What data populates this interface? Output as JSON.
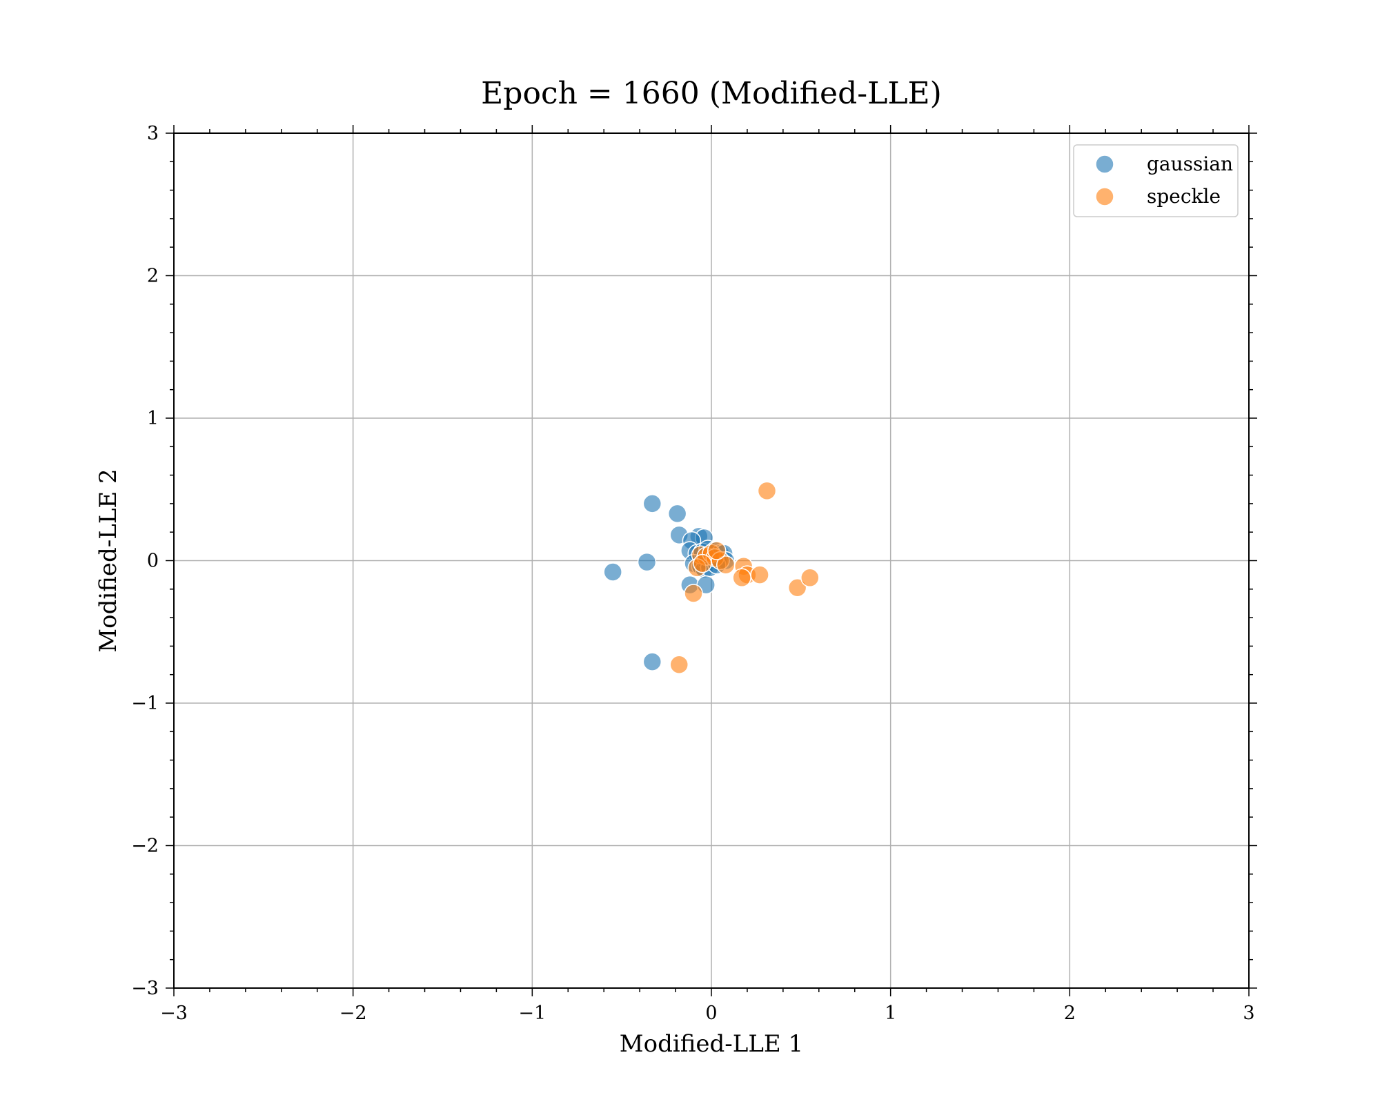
{
  "chart_data": {
    "type": "scatter",
    "title": "Epoch = 1660 (Modified-LLE)",
    "xlabel": "Modified-LLE 1",
    "ylabel": "Modified-LLE 2",
    "xlim": [
      -3,
      3
    ],
    "ylim": [
      -3,
      3
    ],
    "xticks": [
      -3,
      -2,
      -1,
      0,
      1,
      2,
      3
    ],
    "yticks": [
      -3,
      -2,
      -1,
      0,
      1,
      2,
      3
    ],
    "xtick_labels": [
      "−3",
      "−2",
      "−1",
      "0",
      "1",
      "2",
      "3"
    ],
    "ytick_labels": [
      "−3",
      "−2",
      "−1",
      "0",
      "1",
      "2",
      "3"
    ],
    "grid": true,
    "legend_position": "top-right",
    "series": [
      {
        "name": "gaussian",
        "color": "#1f77b4",
        "points": [
          [
            -0.33,
            0.4
          ],
          [
            -0.19,
            0.33
          ],
          [
            -0.18,
            0.18
          ],
          [
            -0.07,
            0.17
          ],
          [
            -0.04,
            0.16
          ],
          [
            -0.11,
            0.14
          ],
          [
            -0.55,
            -0.08
          ],
          [
            -0.36,
            -0.01
          ],
          [
            -0.12,
            0.07
          ],
          [
            -0.08,
            0.05
          ],
          [
            -0.05,
            0.06
          ],
          [
            -0.02,
            0.08
          ],
          [
            0.02,
            0.07
          ],
          [
            0.05,
            0.05
          ],
          [
            0.07,
            0.05
          ],
          [
            -0.1,
            -0.02
          ],
          [
            -0.06,
            -0.04
          ],
          [
            -0.03,
            0.0
          ],
          [
            0.01,
            0.02
          ],
          [
            0.04,
            -0.01
          ],
          [
            0.08,
            0.0
          ],
          [
            -0.04,
            -0.06
          ],
          [
            -0.01,
            -0.05
          ],
          [
            0.03,
            -0.03
          ],
          [
            -0.12,
            -0.17
          ],
          [
            -0.03,
            -0.17
          ],
          [
            -0.33,
            -0.71
          ]
        ]
      },
      {
        "name": "speckle",
        "color": "#ff7f0e",
        "points": [
          [
            0.31,
            0.49
          ],
          [
            -0.06,
            0.04
          ],
          [
            -0.03,
            0.03
          ],
          [
            0.0,
            0.05
          ],
          [
            0.02,
            0.02
          ],
          [
            0.05,
            0.0
          ],
          [
            0.08,
            -0.03
          ],
          [
            -0.08,
            -0.05
          ],
          [
            -0.05,
            -0.02
          ],
          [
            0.03,
            0.07
          ],
          [
            0.18,
            -0.04
          ],
          [
            0.2,
            -0.1
          ],
          [
            0.17,
            -0.12
          ],
          [
            0.27,
            -0.1
          ],
          [
            0.48,
            -0.19
          ],
          [
            0.55,
            -0.12
          ],
          [
            -0.1,
            -0.23
          ],
          [
            -0.18,
            -0.73
          ]
        ]
      }
    ]
  }
}
